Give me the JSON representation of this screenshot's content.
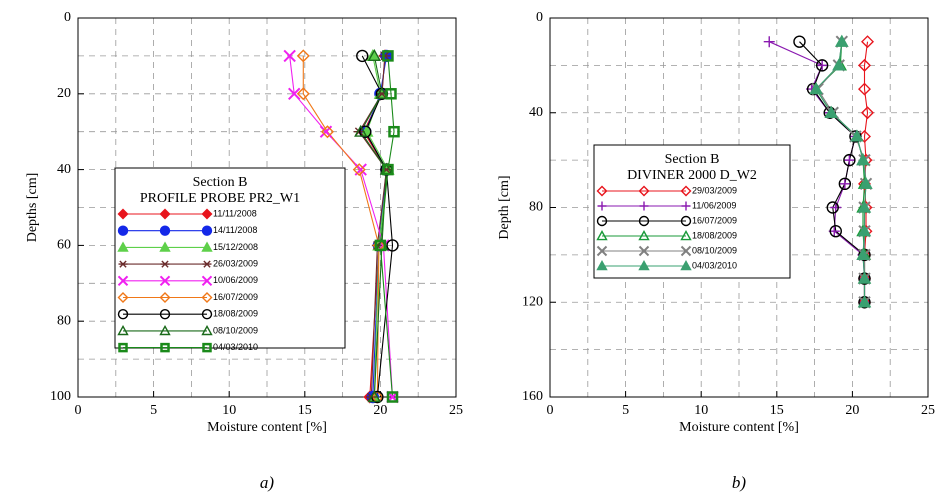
{
  "chart_data": [
    {
      "type": "line",
      "legend_title": [
        "Section B",
        "PROFILE PROBE PR2_W1"
      ],
      "xlabel": "Moisture content [%]",
      "ylabel": "Depths [cm]",
      "caption": "a)",
      "xlim": [
        0,
        25
      ],
      "xticks": [
        0,
        5,
        10,
        15,
        20,
        25
      ],
      "ylim": [
        0,
        100
      ],
      "yticks": [
        0,
        20,
        40,
        60,
        80,
        100
      ],
      "y_inverted": true,
      "grid": true,
      "y": [
        10,
        20,
        30,
        40,
        60,
        100
      ],
      "series": [
        {
          "name": "11/11/2008",
          "color": "#e8141c",
          "marker": "diamond",
          "filled": true,
          "values": [
            20.3,
            20.1,
            18.9,
            20.4,
            19.9,
            19.3
          ]
        },
        {
          "name": "14/11/2008",
          "color": "#1428e8",
          "marker": "circle",
          "filled": true,
          "values": [
            20.4,
            20.0,
            19.0,
            20.4,
            19.9,
            19.5
          ]
        },
        {
          "name": "15/12/2008",
          "color": "#5ed04a",
          "marker": "triangle",
          "filled": true,
          "values": [
            19.5,
            20.0,
            19.1,
            20.5,
            19.9,
            19.6
          ]
        },
        {
          "name": "26/03/2009",
          "color": "#6b2c2c",
          "marker": "star",
          "filled": false,
          "values": [
            20.3,
            20.1,
            18.6,
            20.4,
            19.8,
            19.4
          ]
        },
        {
          "name": "10/06/2009",
          "color": "#f020f0",
          "marker": "x",
          "filled": false,
          "values": [
            14.0,
            14.3,
            16.4,
            18.7,
            20.2,
            20.8
          ]
        },
        {
          "name": "16/07/2009",
          "color": "#f07818",
          "marker": "diamond",
          "filled": false,
          "values": [
            14.9,
            14.9,
            16.5,
            18.6,
            19.9,
            19.8
          ]
        },
        {
          "name": "18/08/2009",
          "color": "#000000",
          "marker": "circle",
          "filled": false,
          "values": [
            18.8,
            20.1,
            19.0,
            20.4,
            20.8,
            19.8
          ]
        },
        {
          "name": "08/10/2009",
          "color": "#1a6a1a",
          "marker": "triangle",
          "filled": false,
          "values": [
            19.6,
            20.1,
            18.7,
            20.4,
            20.1,
            19.6
          ]
        },
        {
          "name": "04/03/2010",
          "color": "#1a8a1a",
          "marker": "square",
          "filled": false,
          "values": [
            20.5,
            20.7,
            20.9,
            20.5,
            20.0,
            20.8
          ]
        }
      ]
    },
    {
      "type": "line",
      "legend_title": [
        "Section B",
        "DIVINER 2000 D_W2"
      ],
      "xlabel": "Moisture content [%]",
      "ylabel": "Depth [cm]",
      "caption": "b)",
      "xlim": [
        0,
        25
      ],
      "xticks": [
        0,
        5,
        10,
        15,
        20,
        25
      ],
      "ylim": [
        0,
        160
      ],
      "yticks": [
        0,
        40,
        80,
        120,
        160
      ],
      "y_inverted": true,
      "grid": true,
      "y": [
        10,
        20,
        30,
        40,
        50,
        60,
        70,
        80,
        90,
        100,
        110,
        120
      ],
      "series": [
        {
          "name": "29/03/2009",
          "color": "#e8141c",
          "marker": "diamond",
          "filled": false,
          "values": [
            21.0,
            20.8,
            20.8,
            21.0,
            20.8,
            20.9,
            20.8,
            20.9,
            20.9,
            20.8,
            20.8,
            20.8
          ]
        },
        {
          "name": "11/06/2009",
          "color": "#8a1ab0",
          "marker": "plus",
          "filled": false,
          "values": [
            14.5,
            18.0,
            17.3,
            18.5,
            20.2,
            19.8,
            19.5,
            18.9,
            18.8,
            20.7,
            20.8,
            20.8
          ]
        },
        {
          "name": "16/07/2009",
          "color": "#000000",
          "marker": "circle",
          "filled": false,
          "values": [
            16.5,
            18.0,
            17.4,
            18.5,
            20.2,
            19.8,
            19.5,
            18.7,
            18.9,
            20.8,
            20.8,
            20.8
          ]
        },
        {
          "name": "18/08/2009",
          "color": "#1a9a3a",
          "marker": "triangle",
          "filled": false,
          "values": [
            19.3,
            19.2,
            17.6,
            18.6,
            20.3,
            20.7,
            20.8,
            20.7,
            20.7,
            20.8,
            20.8,
            20.8
          ]
        },
        {
          "name": "08/10/2009",
          "color": "#808080",
          "marker": "x",
          "filled": false,
          "values": [
            19.3,
            19.1,
            17.7,
            18.7,
            20.2,
            20.8,
            20.9,
            20.8,
            20.8,
            20.8,
            20.8,
            20.8
          ]
        },
        {
          "name": "04/03/2010",
          "color": "#3aa070",
          "marker": "triangle",
          "filled": true,
          "values": [
            19.3,
            19.1,
            17.6,
            18.6,
            20.3,
            20.7,
            20.9,
            20.8,
            20.8,
            20.7,
            20.8,
            20.8
          ]
        }
      ]
    }
  ]
}
